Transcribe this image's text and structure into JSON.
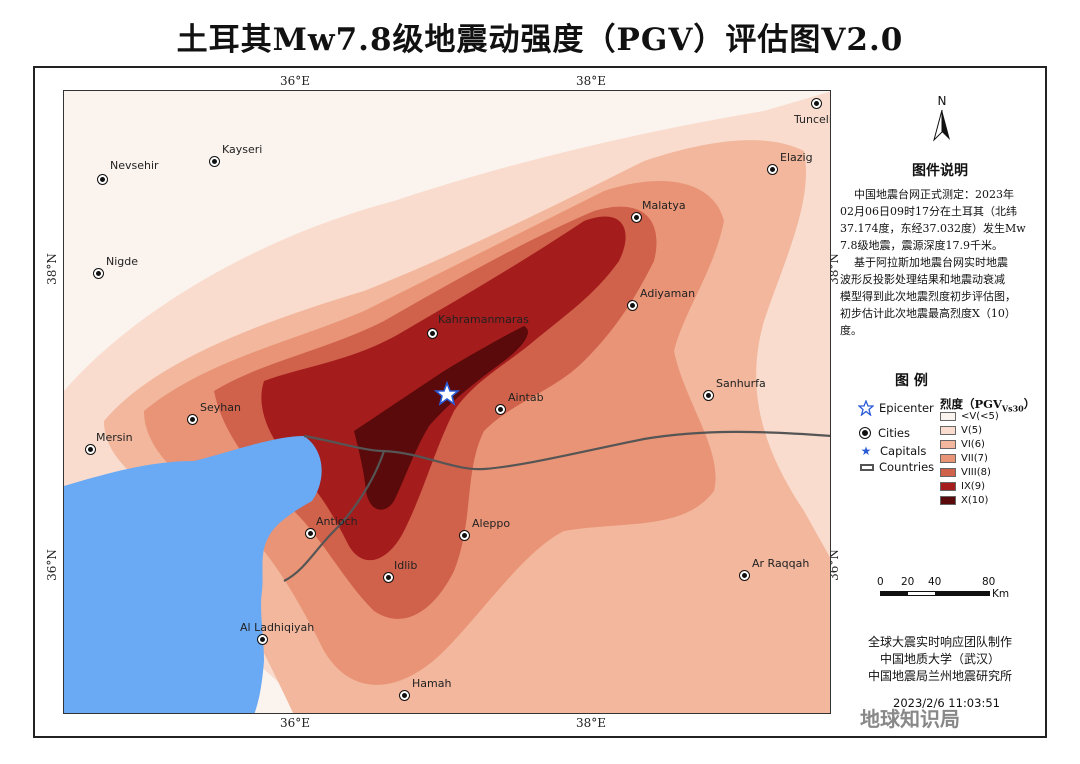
{
  "title": "土耳其Mw7.8级地震动强度（PGV）评估图V2.0",
  "ticks": {
    "top": [
      "36°E",
      "38°E"
    ],
    "bottom": [
      "36°E",
      "38°E"
    ],
    "left": [
      "38°N",
      "36°N"
    ],
    "right": [
      "38°N",
      "36°N"
    ]
  },
  "north_label": "N",
  "explain_title": "图件说明",
  "explain_lines": [
    "中国地震台网正式测定：2023年",
    "02月06日09时17分在土耳其（北纬",
    "37.174度，东经37.032度）发生Mw",
    "7.8级地震，震源深度17.9千米。",
    "基于阿拉斯加地震台网实时地震",
    "波形反投影处理结果和地震动衰减",
    "模型得到此次地震烈度初步评估图，",
    "初步估计此次地震最高烈度Ⅹ（10）",
    "度。"
  ],
  "legend_title": "图 例",
  "legend_symbols": [
    {
      "label": "Epicenter",
      "icon": "star-outline-icon"
    },
    {
      "label": "Cities",
      "icon": "city-dot-icon"
    },
    {
      "label": "Capitals",
      "icon": "star-filled-icon"
    },
    {
      "label": "Countries",
      "icon": "border-line-icon"
    }
  ],
  "intensity_title": "烈度（PGV",
  "intensity_sub": "Vs30",
  "intensity_close": "）",
  "intensity_classes": [
    {
      "label": "<V(<5)",
      "color": "#fbf3ee"
    },
    {
      "label": "V(5)",
      "color": "#f9dccd"
    },
    {
      "label": "VI(6)",
      "color": "#f2b79d"
    },
    {
      "label": "VII(7)",
      "color": "#e99476"
    },
    {
      "label": "VIII(8)",
      "color": "#d0614b"
    },
    {
      "label": "IX(9)",
      "color": "#a51c1c"
    },
    {
      "label": "X(10)",
      "color": "#5a0a0a"
    }
  ],
  "scale": {
    "labels": [
      "0",
      "20",
      "40",
      "80"
    ],
    "unit": "Km"
  },
  "cities": [
    {
      "name": "Tunceli"
    },
    {
      "name": "Kayseri"
    },
    {
      "name": "Nevsehir"
    },
    {
      "name": "Elazig"
    },
    {
      "name": "Malatya"
    },
    {
      "name": "Nigde"
    },
    {
      "name": "Adiyaman"
    },
    {
      "name": "Kahramanmaras"
    },
    {
      "name": "Aintab"
    },
    {
      "name": "Sanhurfa"
    },
    {
      "name": "Seyhan"
    },
    {
      "name": "Mersin"
    },
    {
      "name": "Antioch"
    },
    {
      "name": "Aleppo"
    },
    {
      "name": "Idlib"
    },
    {
      "name": "Ar Raqqah"
    },
    {
      "name": "Al Ladhiqiyah"
    },
    {
      "name": "Hamah"
    }
  ],
  "credits": [
    "全球大震实时响应团队制作",
    "中国地质大学（武汉）",
    "中国地震局兰州地震研究所"
  ],
  "timestamp": "2023/2/6 11:03:51",
  "watermark": "地球知识局",
  "colors": {
    "sea": "#6aa9f3",
    "border": "#555555"
  }
}
